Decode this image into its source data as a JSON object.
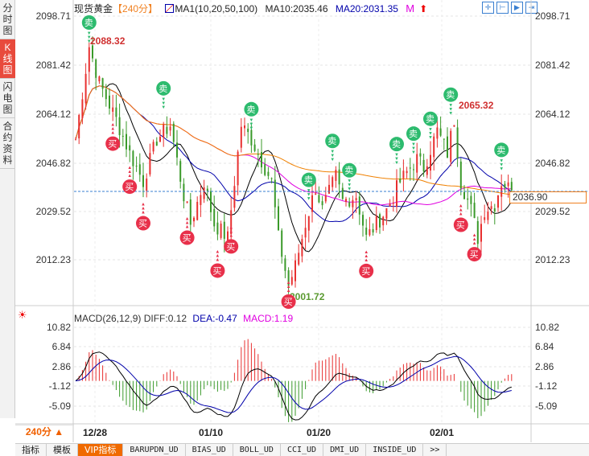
{
  "side_tabs": [
    {
      "label": "分时图"
    },
    {
      "label": "K线图",
      "active": true
    },
    {
      "label": "闪电图"
    },
    {
      "label": "合约资料"
    }
  ],
  "header": {
    "symbol": "现货黄金",
    "period": "【240分】",
    "ma_label": "MA1(10,20,50,100)",
    "ma10": "MA10:2035.46",
    "ma20": "MA20:2031.35",
    "m_label": "M"
  },
  "toolbar_icons": [
    "crosshair-icon",
    "zoom-in-icon",
    "zoom-next-icon",
    "scroll-end-icon"
  ],
  "price_axis": {
    "ticks": [
      "2098.71",
      "2081.42",
      "2064.12",
      "2046.82",
      "2029.52",
      "2012.23"
    ]
  },
  "current_price": "2036.90",
  "annotations": {
    "high": "2088.32",
    "high2": "2065.32",
    "low": "2001.72"
  },
  "macd": {
    "title": "MACD(26,12,9)",
    "diff": "DIFF:0.12",
    "dea": "DEA:-0.47",
    "macd": "MACD:1.19",
    "ticks": [
      "10.82",
      "6.84",
      "2.86",
      "-1.12",
      "-5.09"
    ]
  },
  "dates": [
    "12/28",
    "01/10",
    "01/20",
    "02/01"
  ],
  "period_select": "240分 ▲",
  "bottom_tabs": [
    {
      "label": "指标"
    },
    {
      "label": "模板"
    },
    {
      "label": "VIP指标",
      "active": true
    },
    {
      "label": "BARUPDN_UD"
    },
    {
      "label": "BIAS_UD"
    },
    {
      "label": "BOLL_UD"
    },
    {
      "label": "CCI_UD"
    },
    {
      "label": "DMI_UD"
    },
    {
      "label": "INSIDE_UD"
    },
    {
      "label": ">>"
    }
  ],
  "signals": {
    "sell": "卖",
    "buy": "买"
  },
  "colors": {
    "up": "#e83030",
    "down": "#3a9a2a",
    "ma10": "#000000",
    "ma20": "#0000aa",
    "ma50": "#e000e0",
    "ma100": "#f08000",
    "sell": "#2dbb6e",
    "buy": "#e8304a"
  },
  "chart_data": {
    "type": "candlestick",
    "price_path": [
      [
        0,
        2055
      ],
      [
        4,
        2088
      ],
      [
        7,
        2075
      ],
      [
        12,
        2062
      ],
      [
        16,
        2050
      ],
      [
        20,
        2040
      ],
      [
        24,
        2055
      ],
      [
        28,
        2060
      ],
      [
        32,
        2035
      ],
      [
        34,
        2025
      ],
      [
        38,
        2040
      ],
      [
        41,
        2025
      ],
      [
        45,
        2020
      ],
      [
        47,
        2040
      ],
      [
        49,
        2060
      ],
      [
        52,
        2055
      ],
      [
        54,
        2050
      ],
      [
        58,
        2040
      ],
      [
        60,
        2020
      ],
      [
        63,
        2003
      ],
      [
        65,
        2010
      ],
      [
        68,
        2025
      ],
      [
        71,
        2038
      ],
      [
        73,
        2030
      ],
      [
        77,
        2042
      ],
      [
        79,
        2033
      ],
      [
        83,
        2035
      ],
      [
        86,
        2020
      ],
      [
        89,
        2025
      ],
      [
        92,
        2030
      ],
      [
        96,
        2040
      ],
      [
        101,
        2048
      ],
      [
        103,
        2045
      ],
      [
        107,
        2058
      ],
      [
        110,
        2050
      ],
      [
        112,
        2062
      ],
      [
        114,
        2040
      ],
      [
        117,
        2030
      ],
      [
        119,
        2020
      ],
      [
        121,
        2030
      ],
      [
        124,
        2032
      ],
      [
        126,
        2040
      ],
      [
        129,
        2036.9
      ]
    ],
    "sell_signals_at": [
      4,
      26,
      52,
      69,
      76,
      81,
      95,
      100,
      105,
      111,
      126
    ],
    "buy_signals_at": [
      11,
      16,
      20,
      33,
      42,
      46,
      63,
      86,
      114,
      118
    ],
    "ylim": [
      2001.72,
      2098.71
    ]
  }
}
